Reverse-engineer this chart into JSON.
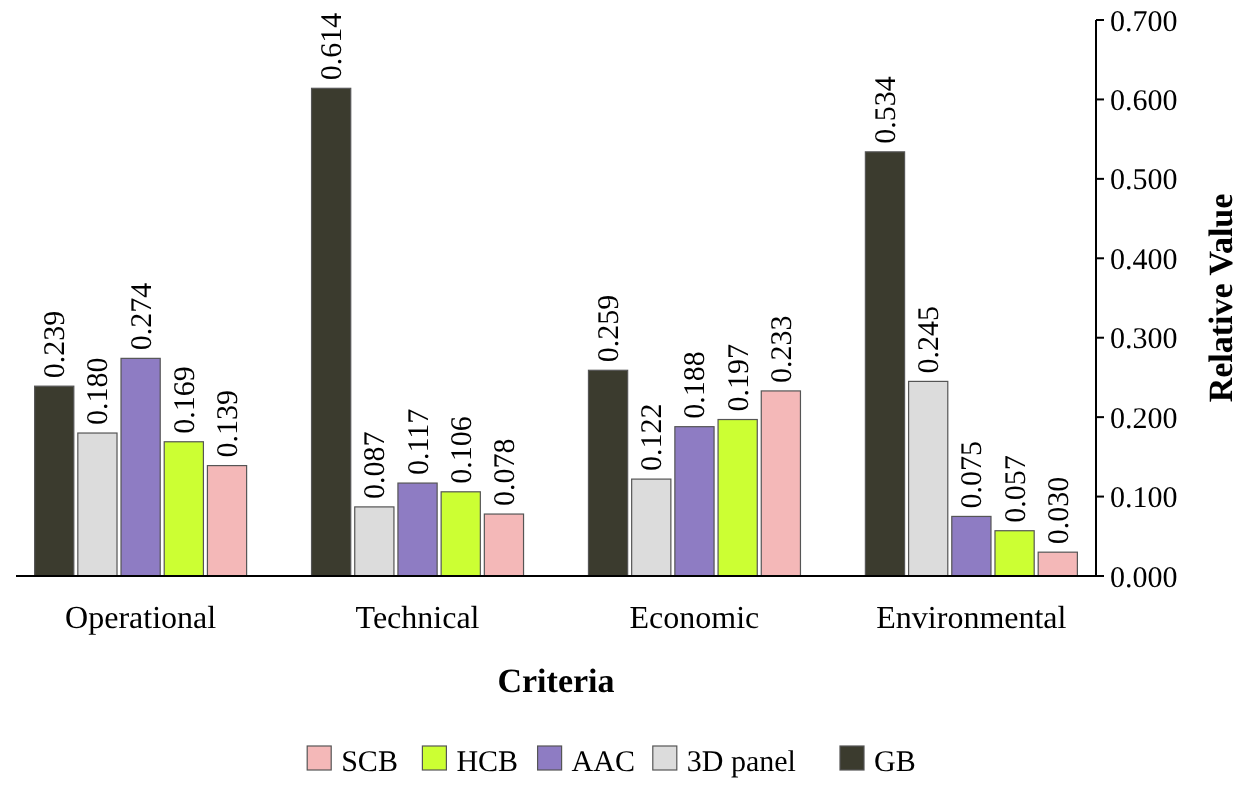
{
  "chart_data": {
    "type": "bar",
    "xlabel": "Criteria",
    "ylabel": "Relative Value",
    "categories": [
      "Operational",
      "Technical",
      "Economic",
      "Environmental"
    ],
    "series": [
      {
        "name": "GB",
        "color": "#3b3b2e",
        "values": [
          0.239,
          0.614,
          0.259,
          0.534
        ],
        "value_labels": [
          "0.239",
          "0.614",
          "0.259",
          "0.534"
        ]
      },
      {
        "name": "3D panel",
        "color": "#dcdcdc",
        "values": [
          0.18,
          0.087,
          0.122,
          0.245
        ],
        "value_labels": [
          "0.180",
          "0.087",
          "0.122",
          "0.245"
        ]
      },
      {
        "name": "AAC",
        "color": "#8e7cc3",
        "values": [
          0.274,
          0.117,
          0.188,
          0.075
        ],
        "value_labels": [
          "0.274",
          "0.117",
          "0.188",
          "0.075"
        ]
      },
      {
        "name": "HCB",
        "color": "#ccff33",
        "values": [
          0.169,
          0.106,
          0.197,
          0.057
        ],
        "value_labels": [
          "0.169",
          "0.106",
          "0.197",
          "0.057"
        ]
      },
      {
        "name": "SCB",
        "color": "#f4b8b8",
        "values": [
          0.139,
          0.078,
          0.233,
          0.03
        ],
        "value_labels": [
          "0.139",
          "0.078",
          "0.233",
          "0.030"
        ]
      }
    ],
    "ylim": [
      0,
      0.7
    ],
    "yticks": [
      {
        "value": 0,
        "label": "0.000"
      },
      {
        "value": 0.1,
        "label": "0.100"
      },
      {
        "value": 0.2,
        "label": "0.200"
      },
      {
        "value": 0.3,
        "label": "0.300"
      },
      {
        "value": 0.4,
        "label": "0.400"
      },
      {
        "value": 0.5,
        "label": "0.500"
      },
      {
        "value": 0.6,
        "label": "0.600"
      },
      {
        "value": 0.7,
        "label": "0.700"
      }
    ],
    "legend": "bottom",
    "grid": false
  }
}
